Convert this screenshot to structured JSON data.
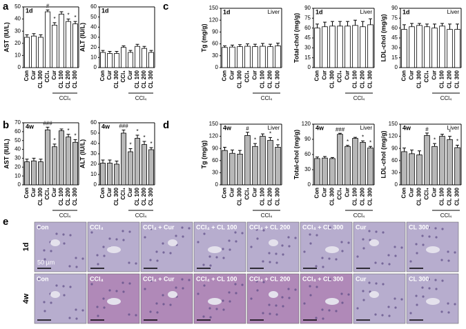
{
  "chart_data": [
    {
      "type": "bar",
      "title": "AST (IU/L)",
      "time": "1d",
      "color": "#ffffff",
      "categories": [
        "Con",
        "Cur",
        "CL 300",
        "CCl₄",
        "Cur",
        "CL 100",
        "CL 200",
        "CL 300"
      ],
      "values": [
        25,
        26,
        25,
        46,
        35,
        44,
        38,
        36
      ],
      "errors": [
        2,
        2,
        2,
        1.5,
        2,
        2,
        2,
        2
      ],
      "markers": [
        null,
        null,
        null,
        "#",
        "*",
        null,
        "*",
        "*"
      ],
      "group_label": "CCl₄",
      "ylim": [
        0,
        50
      ],
      "yticks": [
        0,
        10,
        20,
        30,
        40,
        50
      ]
    },
    {
      "type": "bar",
      "title": "ALT (IU/L)",
      "time": "1d",
      "color": "#ffffff",
      "categories": [
        "Con",
        "Cur",
        "CL 300",
        "CCl₄",
        "Cur",
        "CL 100",
        "CL 200",
        "CL 300"
      ],
      "values": [
        15,
        14,
        14,
        20,
        15,
        21,
        19,
        15
      ],
      "errors": [
        2,
        2,
        2,
        1.5,
        2,
        2,
        2,
        2
      ],
      "group_label": "CCl₄",
      "ylim": [
        0,
        60
      ],
      "yticks": [
        0,
        10,
        20,
        30,
        40,
        50,
        60
      ]
    },
    {
      "type": "bar",
      "title": "Tg (mg/g)",
      "time": "1d",
      "tag": "Liver",
      "color": "#ffffff",
      "categories": [
        "Con",
        "Cur",
        "CL 300",
        "CCl₄",
        "Cur",
        "CL 100",
        "CL 200",
        "CL 300"
      ],
      "values": [
        51,
        52,
        53,
        54,
        53,
        54,
        53,
        55
      ],
      "errors": [
        4,
        5,
        5,
        6,
        6,
        7,
        6,
        7
      ],
      "group_label": "CCl₄",
      "ylim": [
        0,
        150
      ],
      "yticks": [
        0,
        30,
        60,
        90,
        120,
        150
      ]
    },
    {
      "type": "bar",
      "title": "Total-chol (mg/g)",
      "time": "1d",
      "tag": "Liver",
      "color": "#ffffff",
      "categories": [
        "Con",
        "Cur",
        "CL 300",
        "CCl₄",
        "Cur",
        "CL 100",
        "CL 200",
        "CL 300"
      ],
      "values": [
        60,
        62,
        63,
        63,
        63,
        64,
        62,
        65
      ],
      "errors": [
        6,
        7,
        7,
        7,
        7,
        8,
        8,
        9
      ],
      "group_label": "CCl₄",
      "ylim": [
        0,
        90
      ],
      "yticks": [
        0,
        15,
        30,
        45,
        60,
        75,
        90
      ]
    },
    {
      "type": "bar",
      "title": "LDL-chol (mg/g)",
      "time": "1d",
      "tag": "Liver",
      "color": "#ffffff",
      "categories": [
        "Con",
        "Cur",
        "CL 300",
        "CCl₄",
        "Cur",
        "CL 100",
        "CL 200",
        "CL 300"
      ],
      "values": [
        58,
        62,
        64,
        62,
        60,
        63,
        58,
        58
      ],
      "errors": [
        7,
        5,
        3,
        4,
        6,
        4,
        8,
        8
      ],
      "group_label": "CCl₄",
      "ylim": [
        0,
        90
      ],
      "yticks": [
        0,
        15,
        30,
        45,
        60,
        75,
        90
      ]
    },
    {
      "type": "bar",
      "title": "AST (IU/L)",
      "time": "4w",
      "color": "#b8b8b8",
      "categories": [
        "Con",
        "Cur",
        "CL 300",
        "CCl₄",
        "Cur",
        "CL 100",
        "CL 200",
        "CL 300"
      ],
      "values": [
        26,
        27,
        26,
        62,
        43,
        61,
        54,
        48
      ],
      "errors": [
        3,
        3,
        3,
        3,
        3,
        2,
        3,
        3
      ],
      "markers": [
        null,
        null,
        null,
        "###",
        "*",
        null,
        "*",
        "*"
      ],
      "group_label": "CCl₄",
      "ylim": [
        0,
        70
      ],
      "yticks": [
        0,
        10,
        20,
        30,
        40,
        50,
        60,
        70
      ]
    },
    {
      "type": "bar",
      "title": "ALT (IU/L)",
      "time": "4w",
      "color": "#b8b8b8",
      "categories": [
        "Con",
        "Cur",
        "CL 300",
        "CCl₄",
        "Cur",
        "CL 100",
        "CL 200",
        "CL 300"
      ],
      "values": [
        21,
        21,
        20,
        50,
        32,
        45,
        39,
        34
      ],
      "errors": [
        3,
        3,
        3,
        3,
        3,
        3,
        3,
        2
      ],
      "markers": [
        null,
        null,
        null,
        "###",
        "*",
        "*",
        "*",
        "*"
      ],
      "group_label": "CCl₄",
      "ylim": [
        0,
        60
      ],
      "yticks": [
        0,
        10,
        20,
        30,
        40,
        50,
        60
      ]
    },
    {
      "type": "bar",
      "title": "Tg (mg/g)",
      "time": "4w",
      "tag": "Liver",
      "color": "#b8b8b8",
      "categories": [
        "Con",
        "Cur",
        "CL 300",
        "CCl₄",
        "Cur",
        "CL 100",
        "CL 200",
        "CL 300"
      ],
      "values": [
        85,
        78,
        76,
        122,
        95,
        120,
        110,
        93
      ],
      "errors": [
        8,
        8,
        9,
        8,
        7,
        6,
        7,
        6
      ],
      "markers": [
        null,
        null,
        null,
        "#",
        "*",
        null,
        "*",
        "*"
      ],
      "group_label": "CCl₄",
      "ylim": [
        0,
        150
      ],
      "yticks": [
        0,
        30,
        60,
        90,
        120,
        150
      ]
    },
    {
      "type": "bar",
      "title": "Total-chol (mg/g)",
      "time": "4w",
      "tag": "Liver",
      "color": "#b8b8b8",
      "categories": [
        "Con",
        "Cur",
        "CL 300",
        "CCl₄",
        "Cur",
        "CL 100",
        "CL 200",
        "CL 300"
      ],
      "values": [
        52,
        53,
        52,
        100,
        76,
        92,
        84,
        73
      ],
      "errors": [
        3,
        3,
        2,
        2,
        2,
        2,
        3,
        3
      ],
      "markers": [
        null,
        null,
        null,
        "###",
        "*",
        null,
        "*",
        "*"
      ],
      "group_label": "CCl₄",
      "ylim": [
        0,
        120
      ],
      "yticks": [
        0,
        30,
        60,
        90,
        120
      ]
    },
    {
      "type": "bar",
      "title": "LDL-chol (mg/g)",
      "time": "4w",
      "tag": "Liver",
      "color": "#b8b8b8",
      "categories": [
        "Con",
        "Cur",
        "CL 300",
        "CCl₄",
        "Cur",
        "CL 100",
        "CL 200",
        "CL 300"
      ],
      "values": [
        82,
        77,
        74,
        122,
        95,
        120,
        112,
        92
      ],
      "errors": [
        9,
        9,
        10,
        6,
        7,
        5,
        8,
        6
      ],
      "markers": [
        null,
        null,
        null,
        "#",
        "*",
        null,
        "*",
        "*"
      ],
      "group_label": "CCl₄",
      "ylim": [
        0,
        150
      ],
      "yticks": [
        0,
        30,
        60,
        90,
        120,
        150
      ]
    }
  ],
  "panels": [
    "a",
    "b",
    "c",
    "d",
    "e"
  ],
  "histology": {
    "rows": [
      "1d",
      "4w"
    ],
    "columns": [
      "Con",
      "CCl₄",
      "CCl₄ + Cur",
      "CCl₄ + CL 100",
      "CCl₄ + CL 200",
      "CCl₄ + CL 300",
      "Cur",
      "CL 300"
    ],
    "scale": "50 µm"
  }
}
